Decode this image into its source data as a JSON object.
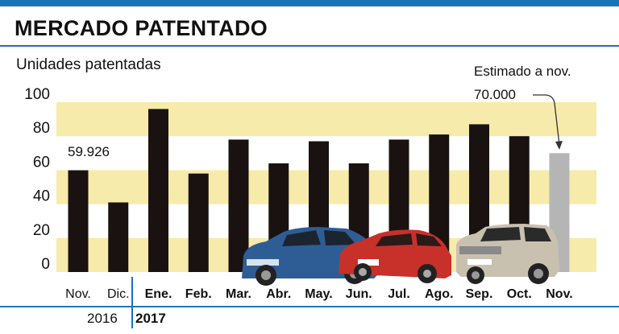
{
  "header": {
    "title": "MERCADO PATENTADO"
  },
  "chart_data": {
    "type": "bar",
    "ylabel": "Unidades patentadas",
    "ylim": [
      0,
      100
    ],
    "yticks": [
      "100",
      "80",
      "60",
      "40",
      "20",
      "0"
    ],
    "categories": [
      "Nov.",
      "Dic.",
      "Ene.",
      "Feb.",
      "Mar.",
      "Abr.",
      "May.",
      "Jun.",
      "Jul.",
      "Ago.",
      "Sep.",
      "Oct.",
      "Nov."
    ],
    "values": [
      59.926,
      41,
      96,
      58,
      78,
      64,
      77,
      64,
      78,
      81,
      87,
      80,
      70.0
    ],
    "estimated": [
      false,
      false,
      false,
      false,
      false,
      false,
      false,
      false,
      false,
      false,
      false,
      false,
      true
    ],
    "years": {
      "first": "2016",
      "second": "2017"
    },
    "annotations": {
      "first_value": "59.926",
      "estimate_title": "Estimado a nov.",
      "estimate_value": "70.000"
    },
    "colors": {
      "bar": "#1a1210",
      "estimate_bar": "#b5b5b5",
      "band": "#f6ebaa",
      "rule": "#1a75b8"
    }
  }
}
